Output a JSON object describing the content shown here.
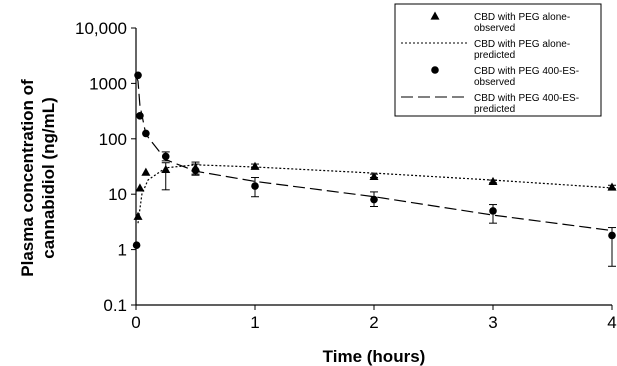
{
  "chart_data": {
    "type": "scatter",
    "title": "",
    "xlabel": "Time (hours)",
    "ylabel_lines": [
      "Plasma concentration of",
      "cannabidiol (ng/mL)"
    ],
    "xlim": [
      0,
      4
    ],
    "ylim": [
      0.1,
      10000
    ],
    "yscale": "log",
    "grid": false,
    "legend_position": "top-right",
    "x_ticks": [
      {
        "value": 0,
        "label": "0"
      },
      {
        "value": 1,
        "label": "1"
      },
      {
        "value": 2,
        "label": "2"
      },
      {
        "value": 3,
        "label": "3"
      },
      {
        "value": 4,
        "label": "4"
      }
    ],
    "y_ticks": [
      {
        "value": 0.1,
        "label": "0.1"
      },
      {
        "value": 1,
        "label": "1"
      },
      {
        "value": 10,
        "label": "10"
      },
      {
        "value": 100,
        "label": "100"
      },
      {
        "value": 1000,
        "label": "1000"
      },
      {
        "value": 10000,
        "label": "10,000"
      }
    ],
    "series": [
      {
        "name": "CBD with PEG alone-observed",
        "kind": "points",
        "marker": "triangle",
        "points": [
          {
            "x": 0.017,
            "y": 4
          },
          {
            "x": 0.033,
            "y": 13
          },
          {
            "x": 0.083,
            "y": 25
          },
          {
            "x": 0.25,
            "y": 28,
            "err_low": 12,
            "err_high": 37
          },
          {
            "x": 0.5,
            "y": 30,
            "err_low": 23,
            "err_high": 38
          },
          {
            "x": 1,
            "y": 32,
            "err_low": 30,
            "err_high": 35
          },
          {
            "x": 2,
            "y": 21,
            "err_low": 20,
            "err_high": 23
          },
          {
            "x": 3,
            "y": 17,
            "err_low": 16,
            "err_high": 18
          },
          {
            "x": 4,
            "y": 13.5,
            "err_low": 12.5,
            "err_high": 14.5
          }
        ]
      },
      {
        "name": "CBD with PEG alone-predicted",
        "kind": "line",
        "dash": "2,2",
        "points": [
          {
            "x": 0.017,
            "y": 3
          },
          {
            "x": 0.05,
            "y": 10
          },
          {
            "x": 0.1,
            "y": 18
          },
          {
            "x": 0.25,
            "y": 30
          },
          {
            "x": 0.5,
            "y": 34
          },
          {
            "x": 1,
            "y": 31
          },
          {
            "x": 2,
            "y": 24
          },
          {
            "x": 3,
            "y": 18
          },
          {
            "x": 4,
            "y": 13
          }
        ]
      },
      {
        "name": "CBD with PEG 400-ES-observed",
        "kind": "points",
        "marker": "circle",
        "points": [
          {
            "x": 0.005,
            "y": 1.2
          },
          {
            "x": 0.017,
            "y": 1400
          },
          {
            "x": 0.033,
            "y": 260
          },
          {
            "x": 0.083,
            "y": 125
          },
          {
            "x": 0.25,
            "y": 48,
            "err_low": 40,
            "err_high": 58
          },
          {
            "x": 0.5,
            "y": 27,
            "err_low": 22,
            "err_high": 35
          },
          {
            "x": 1,
            "y": 14,
            "err_low": 9,
            "err_high": 20
          },
          {
            "x": 2,
            "y": 8,
            "err_low": 6,
            "err_high": 11
          },
          {
            "x": 3,
            "y": 5,
            "err_low": 3,
            "err_high": 6.5
          },
          {
            "x": 4,
            "y": 1.8,
            "err_low": 0.5,
            "err_high": 2.5
          }
        ]
      },
      {
        "name": "CBD with PEG 400-ES-predicted",
        "kind": "line",
        "dash": "12,5",
        "points": [
          {
            "x": 0.005,
            "y": 1300
          },
          {
            "x": 0.017,
            "y": 1100
          },
          {
            "x": 0.033,
            "y": 400
          },
          {
            "x": 0.083,
            "y": 120
          },
          {
            "x": 0.25,
            "y": 42
          },
          {
            "x": 0.5,
            "y": 26
          },
          {
            "x": 1,
            "y": 17
          },
          {
            "x": 2,
            "y": 9
          },
          {
            "x": 3,
            "y": 4.2
          },
          {
            "x": 4,
            "y": 2.2
          }
        ]
      }
    ],
    "legend": [
      {
        "lines": [
          "CBD with PEG alone-",
          "observed"
        ],
        "symbol": "triangle"
      },
      {
        "lines": [
          "CBD with PEG alone-",
          "predicted"
        ],
        "symbol": "short-dash"
      },
      {
        "lines": [
          "CBD with PEG  400-ES-",
          "observed"
        ],
        "symbol": "circle"
      },
      {
        "lines": [
          "CBD with PEG  400-ES-",
          "predicted"
        ],
        "symbol": "long-dash"
      }
    ]
  }
}
